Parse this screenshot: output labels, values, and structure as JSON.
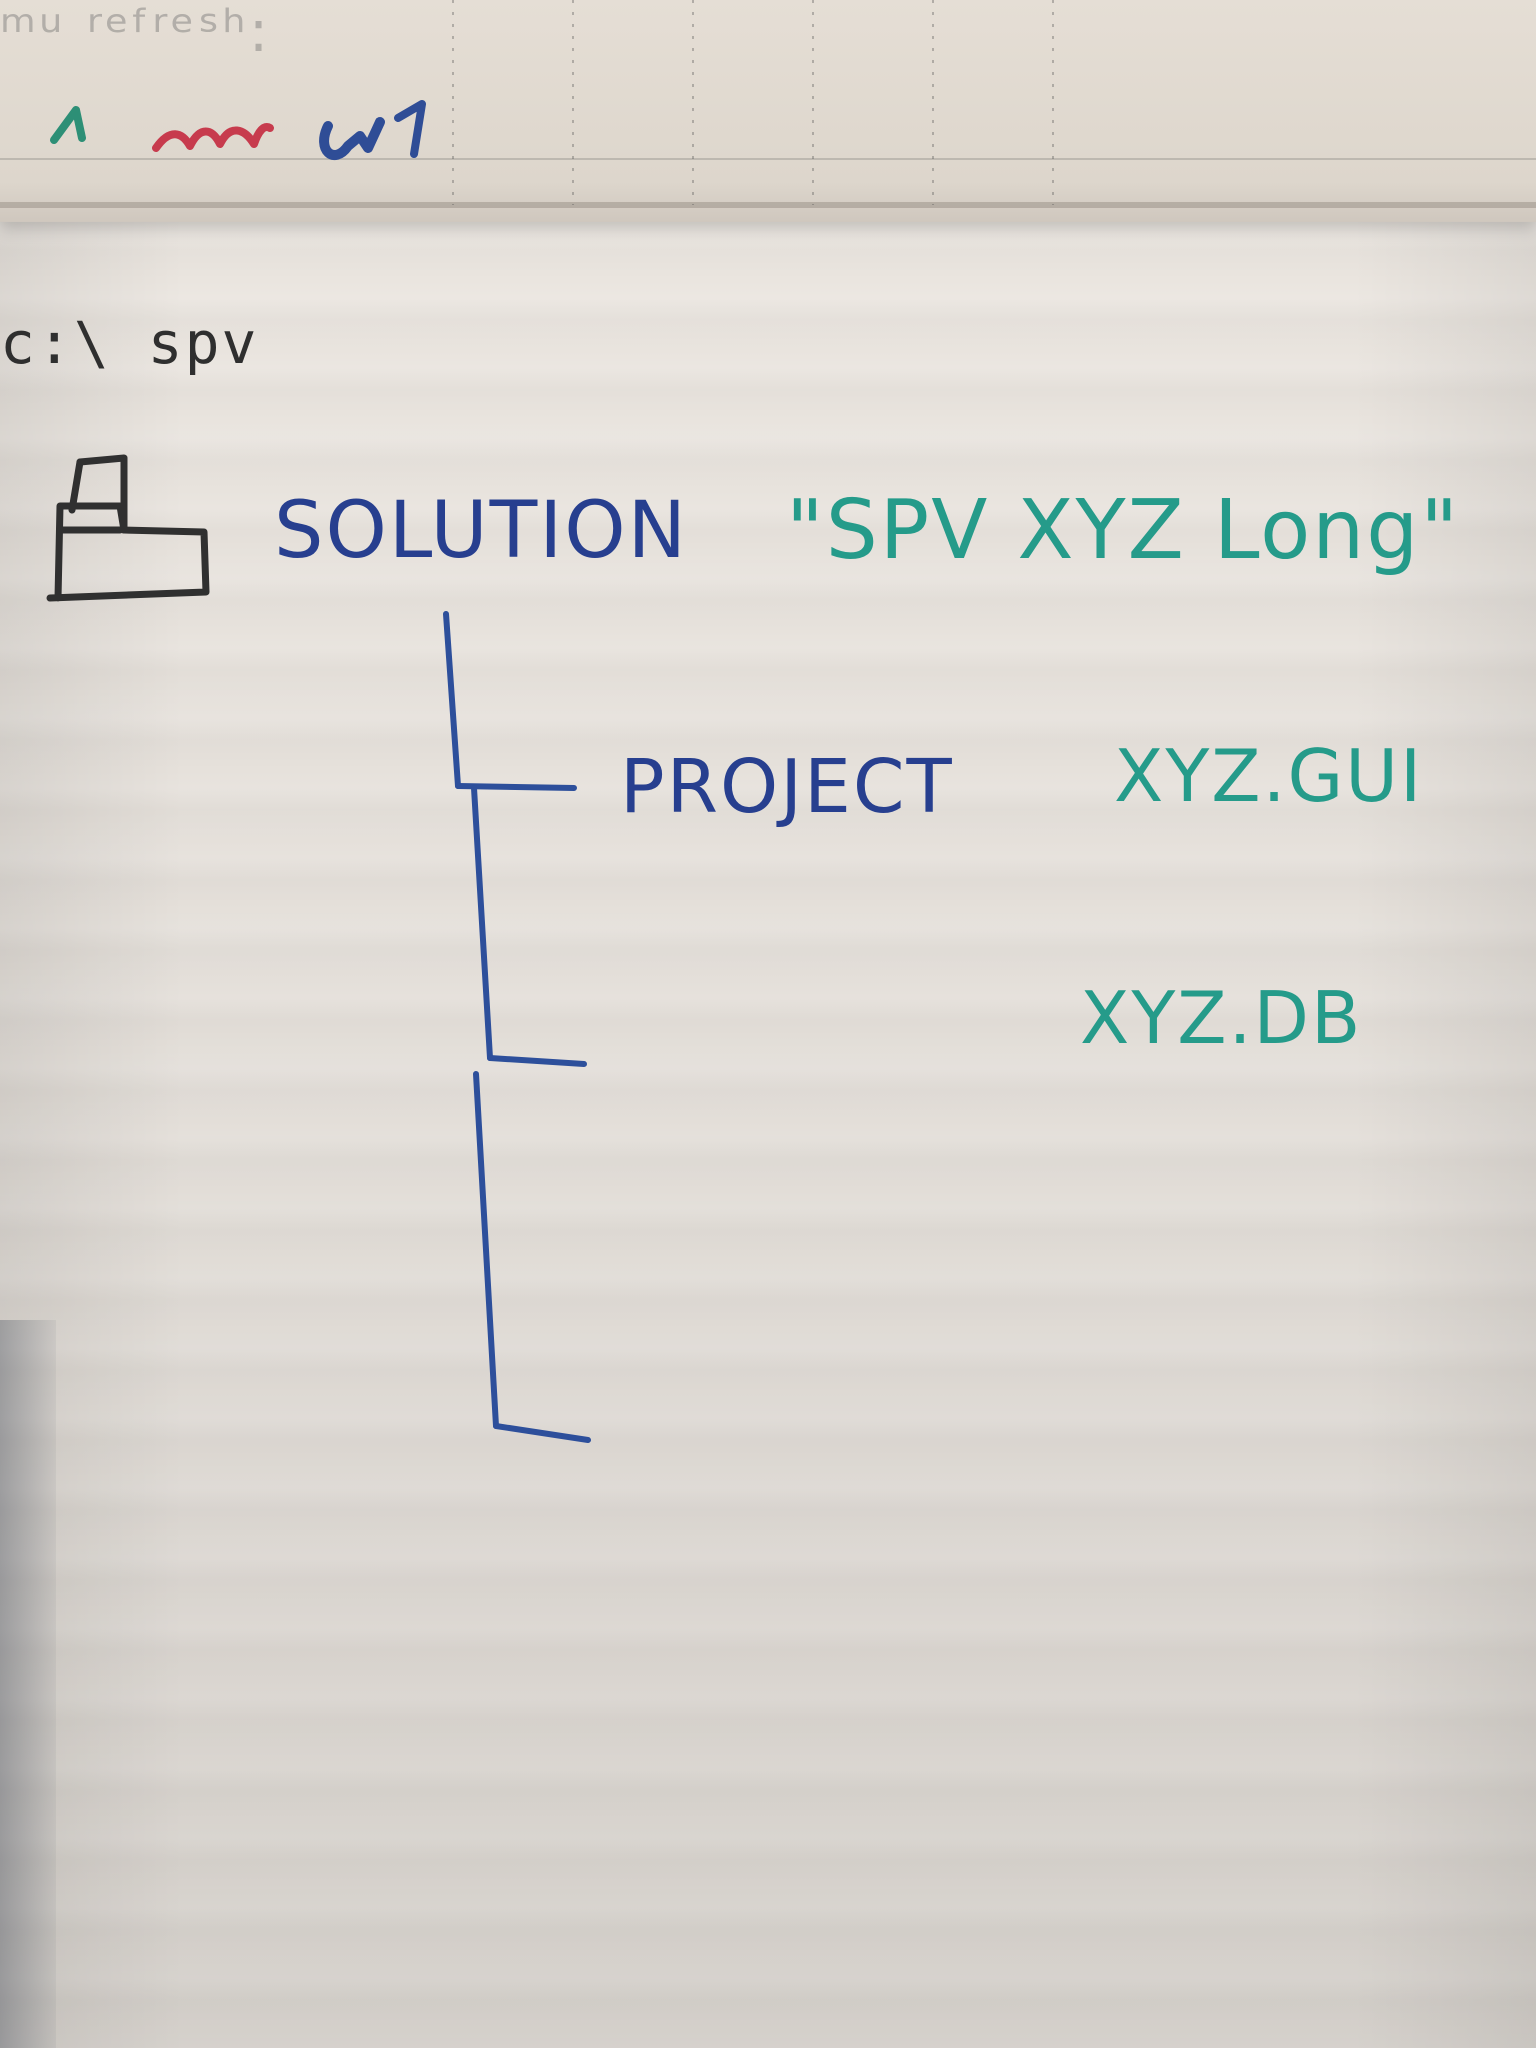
{
  "whiteboard": {
    "path": "c:\\ spv",
    "solution_label": "SOLUTION",
    "solution_name": "\"SPV XYZ Long\"",
    "project_label": "PROJECT",
    "project_items": [
      "XYZ.GUI",
      "XYZ.DB"
    ],
    "icon": "folder-icon",
    "colors": {
      "blue": "#273f8f",
      "teal": "#259b8a",
      "gray": "#2f2f2f",
      "paper": "#ece7e1"
    }
  }
}
